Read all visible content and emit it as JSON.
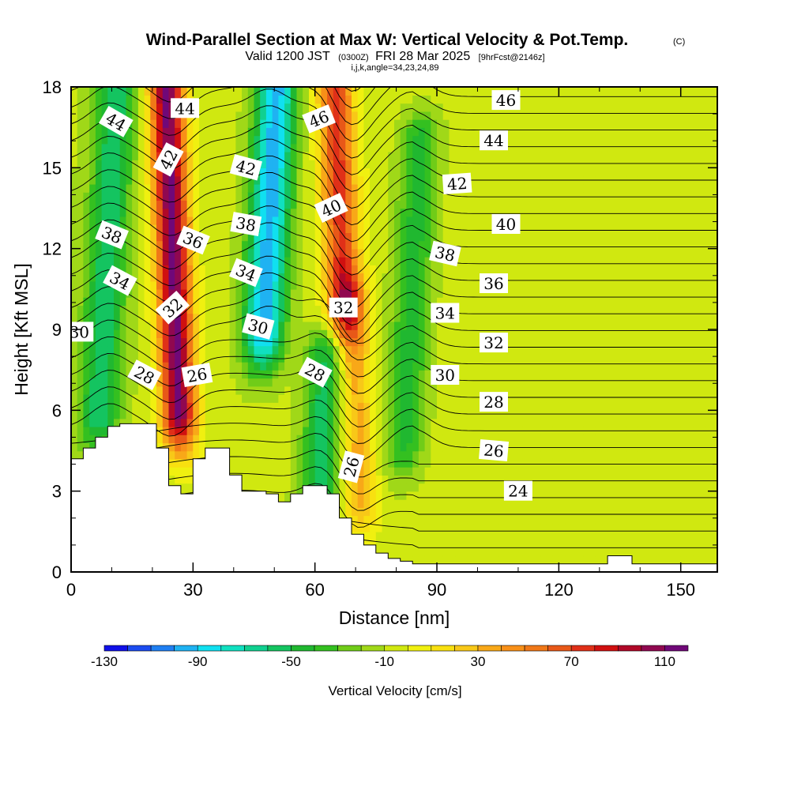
{
  "header": {
    "title": "Wind-Parallel Section at Max W: Vertical Velocity & Pot.Temp.",
    "copyright": "(C)",
    "subtitle_main_a": "Valid 1200 JST",
    "subtitle_zulu": "(0300Z)",
    "subtitle_main_b": "FRI 28 Mar 2025",
    "subtitle_fcst": "[9hrFcst@2146z]",
    "subtitle_indices": "i,j,k,angle=34,23,24,89"
  },
  "chart_data": {
    "type": "contour-section",
    "xlabel": "Distance [nm]",
    "ylabel": "Height [Kft MSL]",
    "xlim": [
      0,
      159
    ],
    "ylim": [
      0,
      18
    ],
    "xticks": [
      0,
      30,
      60,
      90,
      120,
      150
    ],
    "yticks": [
      0,
      3,
      6,
      9,
      12,
      15,
      18
    ],
    "colorbar": {
      "label": "Vertical Velocity [cm/s]",
      "ticks": [
        -130,
        -90,
        -50,
        -10,
        30,
        70,
        110
      ],
      "levels": [
        -130,
        -120,
        -110,
        -100,
        -90,
        -80,
        -70,
        -60,
        -50,
        -40,
        -30,
        -20,
        -10,
        0,
        10,
        20,
        30,
        40,
        50,
        60,
        70,
        80,
        90,
        100,
        110,
        120
      ],
      "colors": [
        "#1010e8",
        "#1c4cf0",
        "#1f7ff2",
        "#1fb2f2",
        "#10e0f0",
        "#10e0c0",
        "#10d090",
        "#14c460",
        "#20b830",
        "#34c020",
        "#70cc18",
        "#a0d818",
        "#d0e810",
        "#f0f010",
        "#f8e010",
        "#f8c818",
        "#f8a818",
        "#f89018",
        "#f07818",
        "#e85818",
        "#e03018",
        "#d01010",
        "#b00828",
        "#900850",
        "#700878"
      ]
    },
    "terrain_profile": {
      "distance_nm": [
        0,
        3,
        3,
        6,
        6,
        9,
        9,
        12,
        12,
        15,
        15,
        18,
        18,
        21,
        21,
        24,
        24,
        27,
        27,
        30,
        30,
        33,
        33,
        36,
        36,
        39,
        39,
        42,
        42,
        45,
        45,
        48,
        48,
        51,
        51,
        54,
        54,
        57,
        57,
        60,
        60,
        63,
        63,
        66,
        66,
        69,
        69,
        72,
        72,
        75,
        75,
        78,
        78,
        81,
        81,
        84,
        84,
        87,
        87,
        90,
        90,
        93,
        93,
        96,
        96,
        99,
        99,
        102,
        102,
        105,
        105,
        108,
        108,
        111,
        111,
        114,
        114,
        117,
        117,
        120,
        120,
        123,
        123,
        126,
        126,
        129,
        129,
        132,
        132,
        135,
        135,
        138,
        138,
        141,
        141,
        144,
        144,
        147,
        147,
        150,
        150,
        153,
        153,
        156,
        156,
        159
      ],
      "height_kft": [
        4.2,
        4.2,
        4.6,
        4.6,
        5.0,
        5.0,
        5.4,
        5.4,
        5.5,
        5.5,
        5.5,
        5.5,
        5.5,
        5.5,
        4.6,
        4.6,
        3.2,
        3.2,
        2.9,
        2.9,
        4.2,
        4.2,
        4.6,
        4.6,
        4.6,
        4.6,
        3.6,
        3.6,
        3.0,
        3.0,
        3.0,
        3.0,
        2.9,
        2.9,
        2.6,
        2.6,
        2.9,
        2.9,
        3.2,
        3.2,
        3.2,
        3.2,
        2.9,
        2.9,
        2.0,
        2.0,
        1.4,
        1.4,
        1.0,
        1.0,
        0.7,
        0.7,
        0.5,
        0.5,
        0.4,
        0.4,
        0.3,
        0.3,
        0.3,
        0.3,
        0.3,
        0.3,
        0.3,
        0.3,
        0.3,
        0.3,
        0.3,
        0.3,
        0.3,
        0.3,
        0.3,
        0.3,
        0.3,
        0.3,
        0.3,
        0.3,
        0.3,
        0.3,
        0.3,
        0.3,
        0.3,
        0.3,
        0.3,
        0.3,
        0.3,
        0.3,
        0.3,
        0.3,
        0.6,
        0.6,
        0.6,
        0.6,
        0.3,
        0.3,
        0.3,
        0.3,
        0.3,
        0.3,
        0.3,
        0.3,
        0.3,
        0.3,
        0.3,
        0.3,
        0.3,
        0.3
      ]
    },
    "vertical_velocity_features": [
      {
        "kind": "updraft",
        "center_nm": 25,
        "peak_cm_s": 120,
        "base_kft": 6,
        "top_kft": 18
      },
      {
        "kind": "updraft",
        "center_nm": 66,
        "peak_cm_s": 80,
        "base_kft": 10,
        "top_kft": 18
      },
      {
        "kind": "updraft",
        "center_nm": 70,
        "peak_cm_s": 40,
        "base_kft": 3,
        "top_kft": 10
      },
      {
        "kind": "downdraft",
        "center_nm": 49,
        "peak_cm_s": -90,
        "base_kft": 9,
        "top_kft": 18
      },
      {
        "kind": "downdraft",
        "center_nm": 9,
        "peak_cm_s": -50,
        "base_kft": 6,
        "top_kft": 18
      },
      {
        "kind": "downdraft",
        "center_nm": 62,
        "peak_cm_s": -50,
        "base_kft": 3,
        "top_kft": 8
      },
      {
        "kind": "downdraft",
        "center_nm": 84,
        "peak_cm_s": -40,
        "base_kft": 5,
        "top_kft": 16
      }
    ],
    "theta_contour_labels": [
      {
        "text": "44",
        "x_nm": 11,
        "y_kft": 16.7,
        "angle": 30
      },
      {
        "text": "44",
        "x_nm": 28,
        "y_kft": 17.2,
        "angle": 0
      },
      {
        "text": "42",
        "x_nm": 24,
        "y_kft": 15.3,
        "angle": -62
      },
      {
        "text": "42",
        "x_nm": 43,
        "y_kft": 15.0,
        "angle": 15
      },
      {
        "text": "46",
        "x_nm": 61,
        "y_kft": 16.8,
        "angle": -22
      },
      {
        "text": "46",
        "x_nm": 107,
        "y_kft": 17.5,
        "angle": 0
      },
      {
        "text": "44",
        "x_nm": 104,
        "y_kft": 16.0,
        "angle": 0
      },
      {
        "text": "42",
        "x_nm": 95,
        "y_kft": 14.4,
        "angle": -4
      },
      {
        "text": "40",
        "x_nm": 64,
        "y_kft": 13.5,
        "angle": -25
      },
      {
        "text": "40",
        "x_nm": 107,
        "y_kft": 12.9,
        "angle": 0
      },
      {
        "text": "38",
        "x_nm": 10,
        "y_kft": 12.5,
        "angle": 22
      },
      {
        "text": "38",
        "x_nm": 43,
        "y_kft": 12.9,
        "angle": 10
      },
      {
        "text": "36",
        "x_nm": 30,
        "y_kft": 12.3,
        "angle": 22
      },
      {
        "text": "38",
        "x_nm": 92,
        "y_kft": 11.8,
        "angle": 13
      },
      {
        "text": "36",
        "x_nm": 104,
        "y_kft": 10.7,
        "angle": 0
      },
      {
        "text": "34",
        "x_nm": 12,
        "y_kft": 10.8,
        "angle": 28
      },
      {
        "text": "34",
        "x_nm": 43,
        "y_kft": 11.1,
        "angle": 22
      },
      {
        "text": "34",
        "x_nm": 92,
        "y_kft": 9.6,
        "angle": 0
      },
      {
        "text": "32",
        "x_nm": 25,
        "y_kft": 9.8,
        "angle": -42
      },
      {
        "text": "32",
        "x_nm": 67,
        "y_kft": 9.8,
        "angle": 0
      },
      {
        "text": "32",
        "x_nm": 104,
        "y_kft": 8.5,
        "angle": 0
      },
      {
        "text": "30",
        "x_nm": 2,
        "y_kft": 8.9,
        "angle": 0
      },
      {
        "text": "30",
        "x_nm": 46,
        "y_kft": 9.1,
        "angle": 15
      },
      {
        "text": "30",
        "x_nm": 92,
        "y_kft": 7.3,
        "angle": 0
      },
      {
        "text": "28",
        "x_nm": 18,
        "y_kft": 7.3,
        "angle": 28
      },
      {
        "text": "28",
        "x_nm": 60,
        "y_kft": 7.4,
        "angle": 28
      },
      {
        "text": "28",
        "x_nm": 104,
        "y_kft": 6.3,
        "angle": 0
      },
      {
        "text": "26",
        "x_nm": 31,
        "y_kft": 7.3,
        "angle": -10
      },
      {
        "text": "26",
        "x_nm": 69,
        "y_kft": 3.9,
        "angle": -75
      },
      {
        "text": "26",
        "x_nm": 104,
        "y_kft": 4.5,
        "angle": 5
      },
      {
        "text": "24",
        "x_nm": 110,
        "y_kft": 3.0,
        "angle": 0
      }
    ],
    "grid": false
  }
}
